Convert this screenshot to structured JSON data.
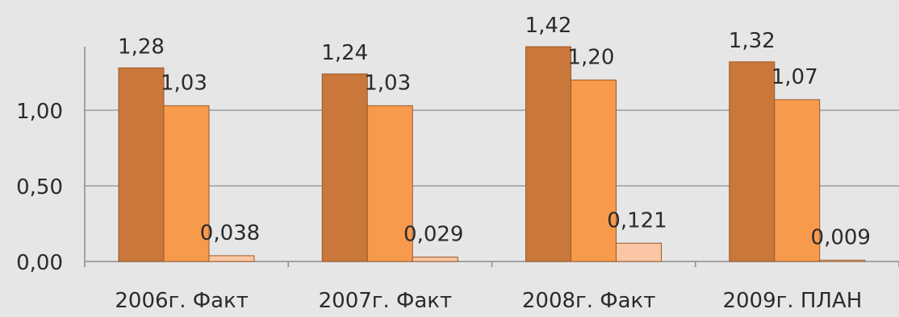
{
  "chart_data": {
    "type": "bar",
    "categories": [
      "2006г. Факт",
      "2007г. Факт",
      "2008г. Факт",
      "2009г. ПЛАН"
    ],
    "series": [
      {
        "values": [
          1.28,
          1.24,
          1.42,
          1.32
        ],
        "labels": [
          "1,28",
          "1,24",
          "1,42",
          "1,32"
        ],
        "color": "#c9773a"
      },
      {
        "values": [
          1.03,
          1.03,
          1.2,
          1.07
        ],
        "labels": [
          "1,03",
          "1,03",
          "1,20",
          "1,07"
        ],
        "color": "#f79a4c"
      },
      {
        "values": [
          0.038,
          0.029,
          0.121,
          0.009
        ],
        "labels": [
          "0,038",
          "0,029",
          "0,121",
          "0,009"
        ],
        "color": "#fbc6a3"
      }
    ],
    "yticks": [
      {
        "value": 0,
        "label": "0,00"
      },
      {
        "value": 0.5,
        "label": "0,50"
      },
      {
        "value": 1.0,
        "label": "1,00"
      }
    ],
    "ylim": [
      0,
      1.5
    ],
    "grid": true,
    "legend": false,
    "title": "",
    "xlabel": "",
    "ylabel": ""
  }
}
